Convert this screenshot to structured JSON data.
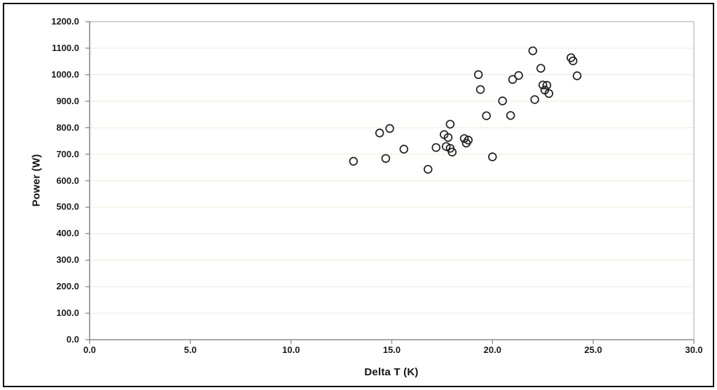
{
  "colors": {
    "background": "#ffffff",
    "frame_border": "#000000",
    "plot_border": "#b8b8b8",
    "axis_line": "#8f8f8f",
    "tick_mark": "#8f8f8f",
    "gridline": "#f2efe3",
    "marker_stroke": "#1f1f1f",
    "text": "#1a1a1a"
  },
  "chart_data": {
    "type": "scatter",
    "title": "",
    "xlabel": "Delta T (K)",
    "ylabel": "Power (W)",
    "xlim": [
      0,
      30
    ],
    "ylim": [
      0,
      1200
    ],
    "x_tick_step": 5,
    "y_tick_step": 100,
    "x_ticks": [
      "0.0",
      "5.0",
      "10.0",
      "15.0",
      "20.0",
      "25.0",
      "30.0"
    ],
    "y_ticks": [
      "1200.0",
      "1100.0",
      "1000.0",
      "900.0",
      "800.0",
      "700.0",
      "600.0",
      "500.0",
      "400.0",
      "300.0",
      "200.0",
      "100.0",
      "0.0"
    ],
    "grid": "horizontal-only",
    "legend": "none",
    "marker": {
      "shape": "open-circle",
      "radius_px": 5.4,
      "stroke": "#1f1f1f",
      "fill": "none"
    },
    "points": [
      [
        13.1,
        673
      ],
      [
        14.4,
        780
      ],
      [
        14.7,
        684
      ],
      [
        14.9,
        797
      ],
      [
        15.6,
        719
      ],
      [
        16.8,
        643
      ],
      [
        17.2,
        725
      ],
      [
        17.6,
        774
      ],
      [
        17.8,
        763
      ],
      [
        17.9,
        813
      ],
      [
        17.7,
        729
      ],
      [
        17.9,
        722
      ],
      [
        18.0,
        708
      ],
      [
        18.6,
        759
      ],
      [
        18.8,
        753
      ],
      [
        18.7,
        742
      ],
      [
        19.3,
        1000
      ],
      [
        19.4,
        944
      ],
      [
        19.7,
        845
      ],
      [
        20.0,
        690
      ],
      [
        20.5,
        901
      ],
      [
        20.9,
        846
      ],
      [
        21.0,
        982
      ],
      [
        21.3,
        997
      ],
      [
        22.0,
        1090
      ],
      [
        22.1,
        906
      ],
      [
        22.4,
        1024
      ],
      [
        22.5,
        961
      ],
      [
        22.7,
        960
      ],
      [
        22.6,
        942
      ],
      [
        22.8,
        929
      ],
      [
        23.9,
        1064
      ],
      [
        24.0,
        1052
      ],
      [
        24.2,
        996
      ]
    ]
  }
}
